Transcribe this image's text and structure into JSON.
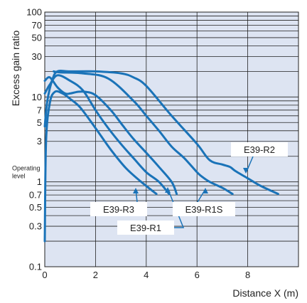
{
  "chart_data": {
    "type": "line",
    "xlabel": "Distance X (m)",
    "ylabel": "Excess gain ratio",
    "xlim": [
      0,
      10
    ],
    "ylim": [
      0.1,
      100
    ],
    "yscale": "log",
    "xticks": [
      "0",
      "2",
      "4",
      "6",
      "8"
    ],
    "yticks": [
      "0.1",
      "0.3",
      "0.5",
      "0.7",
      "1",
      "3",
      "5",
      "7",
      "10",
      "30",
      "50",
      "70",
      "100"
    ],
    "operating_level": "Operating level",
    "grid": true,
    "colors": {
      "plot_bg": "#dde4f2",
      "grid": "#222222",
      "series": "#1a73b8"
    },
    "series": [
      {
        "name": "E39-R3",
        "x": [
          0.0,
          0.05,
          0.2,
          0.4,
          0.7,
          1.0,
          1.4,
          2.0,
          2.6,
          3.2,
          3.8,
          4.4
        ],
        "y": [
          0.2,
          3.0,
          8.5,
          11.5,
          11.0,
          9.5,
          7.5,
          4.3,
          2.4,
          1.45,
          1.0,
          0.72
        ]
      },
      {
        "name": "E39-R1",
        "x": [
          0.0,
          0.2,
          0.5,
          1.0,
          1.5,
          2.0,
          2.5,
          3.0,
          3.5,
          4.0,
          4.5,
          4.9
        ],
        "y": [
          11.0,
          14.0,
          18.0,
          15.5,
          12.0,
          7.0,
          4.3,
          2.8,
          1.9,
          1.3,
          1.0,
          0.72
        ]
      },
      {
        "name": "E39-R1S",
        "x": [
          0.0,
          0.2,
          0.5,
          0.8,
          1.0,
          1.3,
          1.6,
          2.0,
          2.6,
          3.1,
          3.5,
          4.0,
          4.5,
          5.0,
          5.2
        ],
        "y": [
          15.5,
          17.0,
          13.0,
          11.0,
          11.0,
          11.5,
          11.5,
          10.5,
          7.0,
          4.5,
          3.2,
          2.2,
          1.5,
          1.0,
          0.72
        ]
      },
      {
        "name": "E39-R2",
        "x": [
          0.0,
          0.1,
          0.3,
          0.5,
          1.0,
          2.0,
          3.0,
          3.5,
          4.0,
          5.0,
          6.0,
          6.5,
          7.0,
          7.3,
          7.5,
          8.0,
          8.5,
          9.2
        ],
        "y": [
          4.5,
          9.0,
          16.0,
          20.0,
          20.0,
          20.0,
          19.0,
          17.0,
          13.5,
          6.0,
          2.8,
          1.8,
          1.6,
          1.5,
          1.35,
          1.1,
          0.9,
          0.72
        ]
      },
      {
        "name": "E39-R2-upper",
        "x": [
          0.35,
          0.6,
          1.5,
          2.5,
          3.5,
          4.0,
          4.5,
          5.0,
          5.5,
          6.0,
          6.2,
          6.5,
          7.0,
          7.4
        ],
        "y": [
          20.0,
          19.5,
          19.0,
          16.5,
          9.0,
          6.0,
          4.0,
          2.6,
          1.9,
          1.3,
          1.15,
          1.0,
          0.85,
          0.72
        ]
      }
    ],
    "callouts": [
      "E39-R3",
      "E39-R1",
      "E39-R1S",
      "E39-R2"
    ]
  }
}
